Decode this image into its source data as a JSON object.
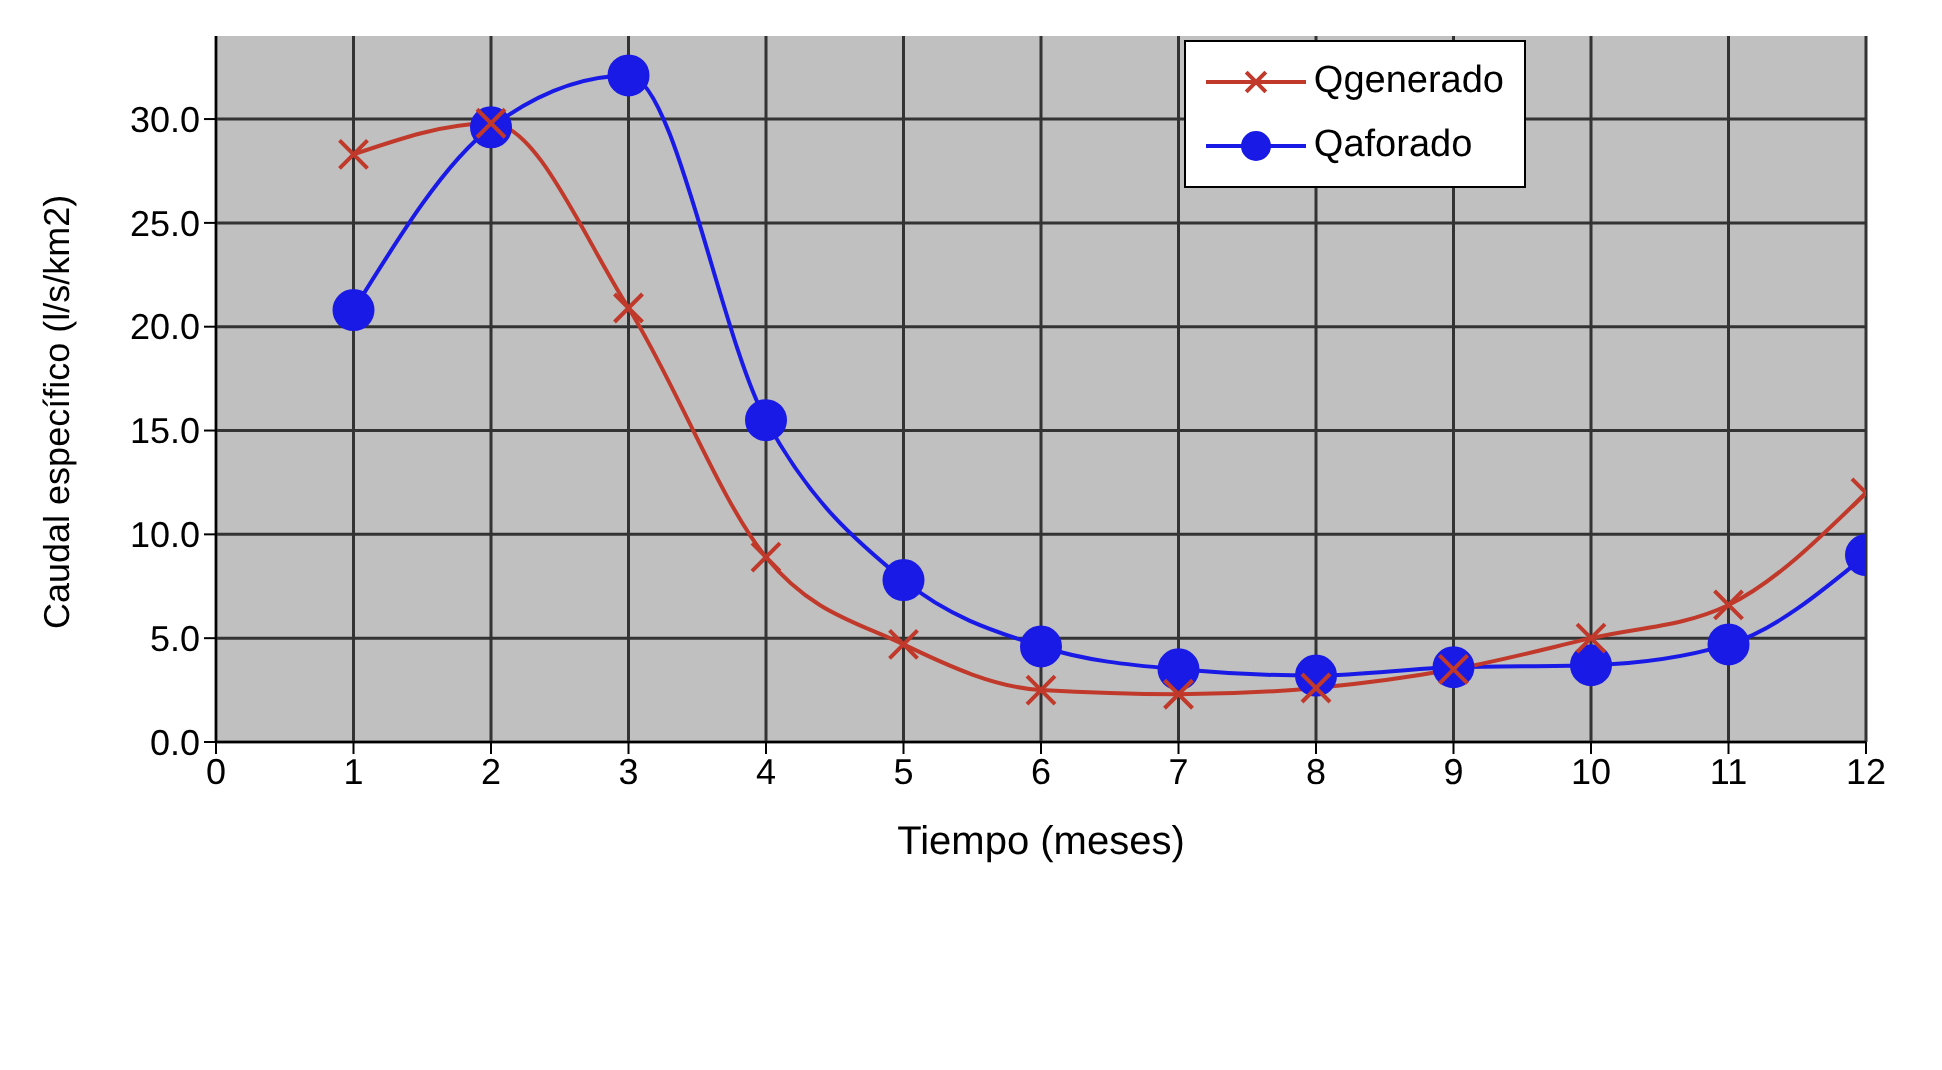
{
  "chart_data": {
    "type": "line",
    "xlabel": "Tiempo (meses)",
    "ylabel": "Caudal específico (l/s/km2)",
    "x": [
      1,
      2,
      3,
      4,
      5,
      6,
      7,
      8,
      9,
      10,
      11,
      12
    ],
    "series": [
      {
        "name": "Qgenerado",
        "color": "#c0392b",
        "marker": "cross",
        "values": [
          28.3,
          29.8,
          20.9,
          8.9,
          4.7,
          2.5,
          2.3,
          2.6,
          3.5,
          5.0,
          6.6,
          12.0
        ]
      },
      {
        "name": "Qaforado",
        "color": "#1a1ae6",
        "marker": "circle",
        "values": [
          20.8,
          29.6,
          32.1,
          15.5,
          7.8,
          4.6,
          3.5,
          3.2,
          3.6,
          3.7,
          4.7,
          9.0
        ]
      }
    ],
    "xlim": [
      0,
      12
    ],
    "xticks": [
      0,
      1,
      2,
      3,
      4,
      5,
      6,
      7,
      8,
      9,
      10,
      11,
      12
    ],
    "ylim": [
      0,
      34
    ],
    "yticks": [
      {
        "value": 0,
        "label": "0.0"
      },
      {
        "value": 5,
        "label": "5.0"
      },
      {
        "value": 10,
        "label": "10.0"
      },
      {
        "value": 15,
        "label": "15.0"
      },
      {
        "value": 20,
        "label": "20.0"
      },
      {
        "value": 25,
        "label": "25.0"
      },
      {
        "value": 30,
        "label": "30.0"
      }
    ],
    "grid": true,
    "legend": "top right",
    "line_style": "solid"
  }
}
